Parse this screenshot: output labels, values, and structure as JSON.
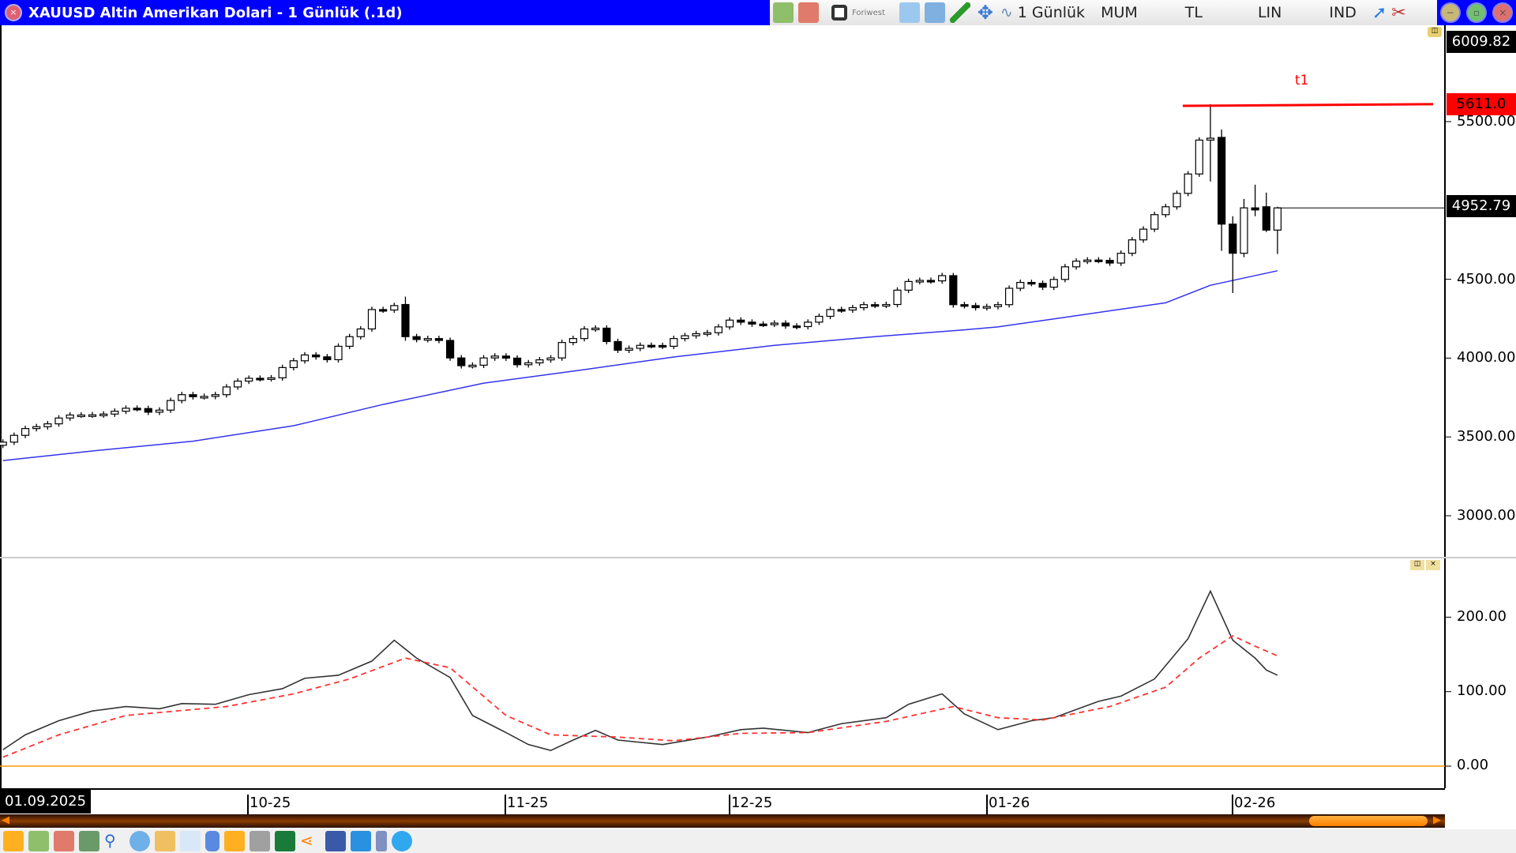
{
  "window": {
    "title": "XAUUSD Altin Amerikan Dolari - 1 Günlük (.1d)"
  },
  "toolbar": {
    "brand": "Foriwest",
    "period": "1 Günlük",
    "chart_type": "MUM",
    "currency": "TL",
    "scale": "LIN",
    "indicators": "IND"
  },
  "price_axis": {
    "top": "6009.82",
    "t1_level": "5611.0",
    "last": "4952.79",
    "ticks": [
      "5500.00",
      "4500.00",
      "4000.00",
      "3500.00",
      "3000.00"
    ]
  },
  "indicator_axis": {
    "ticks": [
      "200.00",
      "100.00",
      "0.00"
    ]
  },
  "date_axis": {
    "first": "01.09.2025",
    "labels": [
      "10-25",
      "11-25",
      "12-25",
      "01-26",
      "02-26"
    ]
  },
  "annotation": {
    "t1": "t1"
  },
  "colors": {
    "title_bar": "#0000ff",
    "ma": "#3333ee",
    "t1": "#ff0000",
    "indicator": "#333333",
    "signal": "#ff3333",
    "zero": "#ff9900"
  },
  "chart_data": [
    {
      "type": "candlestick",
      "title": "XAUUSD",
      "ylim": [
        2800,
        6009.82
      ],
      "closes": [
        3467,
        3510,
        3553,
        3565,
        3583,
        3620,
        3639,
        3639,
        3640,
        3645,
        3663,
        3682,
        3680,
        3657,
        3670,
        3731,
        3768,
        3755,
        3757,
        3768,
        3817,
        3854,
        3872,
        3870,
        3875,
        3940,
        3983,
        4020,
        4008,
        3990,
        4075,
        4136,
        4185,
        4308,
        4305,
        4333,
        4136,
        4118,
        4124,
        4112,
        4001,
        3952,
        3955,
        4001,
        4013,
        4000,
        3958,
        3970,
        3989,
        4001,
        4099,
        4124,
        4185,
        4190,
        4105,
        4050,
        4062,
        4081,
        4080,
        4075,
        4124,
        4142,
        4155,
        4161,
        4198,
        4241,
        4228,
        4216,
        4215,
        4222,
        4204,
        4200,
        4228,
        4265,
        4308,
        4305,
        4320,
        4339,
        4335,
        4340,
        4431,
        4486,
        4493,
        4490,
        4523,
        4339,
        4333,
        4320,
        4327,
        4339,
        4443,
        4480,
        4474,
        4450,
        4499,
        4579,
        4615,
        4622,
        4620,
        4603,
        4665,
        4750,
        4818,
        4910,
        4960,
        5045,
        5168,
        5383,
        5395,
        4850,
        4665,
        4953,
        4940,
        4812,
        4952.79
      ],
      "ohlc_overrides": {
        "36": [
          4340,
          4390,
          4110,
          4136
        ],
        "85": [
          4523,
          4540,
          4320,
          4339
        ],
        "108": [
          5383,
          5611,
          5120,
          5395
        ],
        "109": [
          5400,
          5450,
          4680,
          4850
        ],
        "110": [
          4850,
          4900,
          4413,
          4665
        ],
        "111": [
          4665,
          5010,
          4640,
          4953
        ],
        "112": [
          4953,
          5100,
          4900,
          4940
        ],
        "113": [
          4960,
          5050,
          4800,
          4812
        ],
        "114": [
          4812,
          4960,
          4660,
          4952.79
        ]
      },
      "moving_average": [
        [
          0,
          3350
        ],
        [
          8,
          3411
        ],
        [
          17,
          3473
        ],
        [
          26,
          3571
        ],
        [
          34,
          3706
        ],
        [
          43,
          3841
        ],
        [
          52,
          3927
        ],
        [
          60,
          4007
        ],
        [
          69,
          4081
        ],
        [
          78,
          4136
        ],
        [
          86,
          4179
        ],
        [
          89,
          4198
        ],
        [
          95,
          4259
        ],
        [
          104,
          4351
        ],
        [
          108,
          4462
        ],
        [
          114,
          4554
        ]
      ],
      "t1_line": [
        5600,
        5611
      ]
    },
    {
      "type": "line",
      "ylim": [
        -30,
        280
      ],
      "series": [
        {
          "values": [
            [
              0,
              22
            ],
            [
              2,
              42
            ],
            [
              5,
              61
            ],
            [
              8,
              74
            ],
            [
              11,
              80
            ],
            [
              14,
              77
            ],
            [
              16,
              84
            ],
            [
              19,
              83
            ],
            [
              22,
              96
            ],
            [
              25,
              104
            ],
            [
              27,
              118
            ],
            [
              30,
              122
            ],
            [
              33,
              141
            ],
            [
              35,
              169
            ],
            [
              37,
              145
            ],
            [
              40,
              119
            ],
            [
              42,
              68
            ],
            [
              45,
              45
            ],
            [
              47,
              29
            ],
            [
              49,
              21
            ],
            [
              51,
              35
            ],
            [
              53,
              48
            ],
            [
              55,
              35
            ],
            [
              59,
              29
            ],
            [
              63,
              39
            ],
            [
              66,
              49
            ],
            [
              68,
              51
            ],
            [
              72,
              45
            ],
            [
              75,
              57
            ],
            [
              79,
              65
            ],
            [
              81,
              83
            ],
            [
              84,
              97
            ],
            [
              86,
              70
            ],
            [
              89,
              49
            ],
            [
              92,
              61
            ],
            [
              94,
              65
            ],
            [
              98,
              87
            ],
            [
              100,
              94
            ],
            [
              103,
              117
            ],
            [
              106,
              171
            ],
            [
              108,
              235
            ],
            [
              110,
              169
            ],
            [
              112,
              145
            ],
            [
              113,
              129
            ],
            [
              114,
              122
            ]
          ]
        },
        {
          "dashed": true,
          "values": [
            [
              0,
              12
            ],
            [
              5,
              42
            ],
            [
              11,
              68
            ],
            [
              20,
              80
            ],
            [
              26,
              97
            ],
            [
              31,
              117
            ],
            [
              36,
              145
            ],
            [
              40,
              132
            ],
            [
              45,
              68
            ],
            [
              49,
              42
            ],
            [
              55,
              39
            ],
            [
              60,
              34
            ],
            [
              66,
              44
            ],
            [
              72,
              45
            ],
            [
              79,
              60
            ],
            [
              85,
              80
            ],
            [
              89,
              65
            ],
            [
              93,
              62
            ],
            [
              99,
              80
            ],
            [
              104,
              106
            ],
            [
              107,
              145
            ],
            [
              110,
              175
            ],
            [
              112,
              161
            ],
            [
              114,
              148
            ]
          ]
        }
      ],
      "zero_line": 0
    }
  ]
}
